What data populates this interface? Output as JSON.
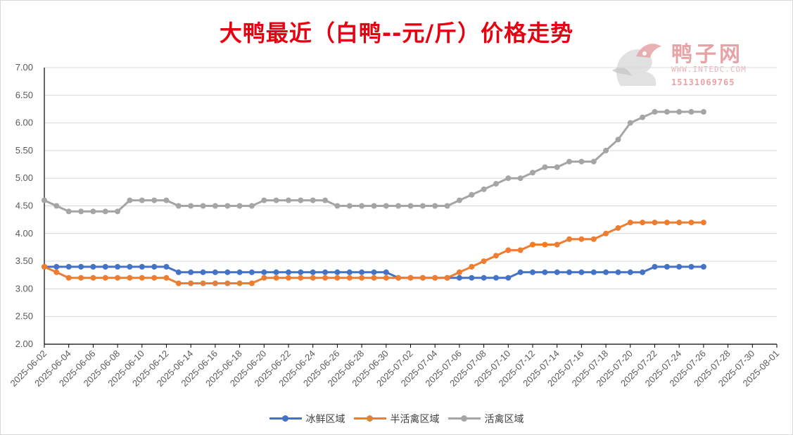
{
  "chart_data": {
    "type": "line",
    "title": "大鸭最近（白鸭--元/斤）价格走势",
    "xlabel": "",
    "ylabel": "",
    "ylim": [
      2.0,
      7.0
    ],
    "yticks": [
      "7.00",
      "6.50",
      "6.00",
      "5.50",
      "5.00",
      "4.50",
      "4.00",
      "3.50",
      "3.00",
      "2.50",
      "2.00"
    ],
    "x_axis_range": [
      "2025-06-02",
      "2025-08-01"
    ],
    "x_tick_labels": [
      "2025-06-02",
      "2025-06-04",
      "2025-06-06",
      "2025-06-08",
      "2025-06-10",
      "2025-06-12",
      "2025-06-14",
      "2025-06-16",
      "2025-06-18",
      "2025-06-20",
      "2025-06-22",
      "2025-06-24",
      "2025-06-26",
      "2025-06-28",
      "2025-06-30",
      "2025-07-02",
      "2025-07-04",
      "2025-07-06",
      "2025-07-08",
      "2025-07-10",
      "2025-07-12",
      "2025-07-14",
      "2025-07-16",
      "2025-07-18",
      "2025-07-20",
      "2025-07-22",
      "2025-07-24",
      "2025-07-26",
      "2025-07-28",
      "2025-07-30",
      "2025-08-01"
    ],
    "x": [
      "2025-06-02",
      "2025-06-03",
      "2025-06-04",
      "2025-06-05",
      "2025-06-06",
      "2025-06-07",
      "2025-06-08",
      "2025-06-09",
      "2025-06-10",
      "2025-06-11",
      "2025-06-12",
      "2025-06-13",
      "2025-06-14",
      "2025-06-15",
      "2025-06-16",
      "2025-06-17",
      "2025-06-18",
      "2025-06-19",
      "2025-06-20",
      "2025-06-21",
      "2025-06-22",
      "2025-06-23",
      "2025-06-24",
      "2025-06-25",
      "2025-06-26",
      "2025-06-27",
      "2025-06-28",
      "2025-06-29",
      "2025-06-30",
      "2025-07-01",
      "2025-07-02",
      "2025-07-03",
      "2025-07-04",
      "2025-07-05",
      "2025-07-06",
      "2025-07-07",
      "2025-07-08",
      "2025-07-09",
      "2025-07-10",
      "2025-07-11",
      "2025-07-12",
      "2025-07-13",
      "2025-07-14",
      "2025-07-15",
      "2025-07-16",
      "2025-07-17",
      "2025-07-18",
      "2025-07-19",
      "2025-07-20",
      "2025-07-21",
      "2025-07-22",
      "2025-07-23",
      "2025-07-24",
      "2025-07-25",
      "2025-07-26"
    ],
    "series": [
      {
        "name": "冰鲜区域",
        "color": "#4472c4",
        "values": [
          3.4,
          3.4,
          3.4,
          3.4,
          3.4,
          3.4,
          3.4,
          3.4,
          3.4,
          3.4,
          3.4,
          3.3,
          3.3,
          3.3,
          3.3,
          3.3,
          3.3,
          3.3,
          3.3,
          3.3,
          3.3,
          3.3,
          3.3,
          3.3,
          3.3,
          3.3,
          3.3,
          3.3,
          3.3,
          3.2,
          3.2,
          3.2,
          3.2,
          3.2,
          3.2,
          3.2,
          3.2,
          3.2,
          3.2,
          3.3,
          3.3,
          3.3,
          3.3,
          3.3,
          3.3,
          3.3,
          3.3,
          3.3,
          3.3,
          3.3,
          3.4,
          3.4,
          3.4,
          3.4,
          3.4
        ]
      },
      {
        "name": "半活禽区域",
        "color": "#ed7d31",
        "values": [
          3.4,
          3.3,
          3.2,
          3.2,
          3.2,
          3.2,
          3.2,
          3.2,
          3.2,
          3.2,
          3.2,
          3.1,
          3.1,
          3.1,
          3.1,
          3.1,
          3.1,
          3.1,
          3.2,
          3.2,
          3.2,
          3.2,
          3.2,
          3.2,
          3.2,
          3.2,
          3.2,
          3.2,
          3.2,
          3.2,
          3.2,
          3.2,
          3.2,
          3.2,
          3.3,
          3.4,
          3.5,
          3.6,
          3.7,
          3.7,
          3.8,
          3.8,
          3.8,
          3.9,
          3.9,
          3.9,
          4.0,
          4.1,
          4.2,
          4.2,
          4.2,
          4.2,
          4.2,
          4.2,
          4.2
        ]
      },
      {
        "name": "活禽区域",
        "color": "#a5a5a5",
        "values": [
          4.6,
          4.5,
          4.4,
          4.4,
          4.4,
          4.4,
          4.4,
          4.6,
          4.6,
          4.6,
          4.6,
          4.5,
          4.5,
          4.5,
          4.5,
          4.5,
          4.5,
          4.5,
          4.6,
          4.6,
          4.6,
          4.6,
          4.6,
          4.6,
          4.5,
          4.5,
          4.5,
          4.5,
          4.5,
          4.5,
          4.5,
          4.5,
          4.5,
          4.5,
          4.6,
          4.7,
          4.8,
          4.9,
          5.0,
          5.0,
          5.1,
          5.2,
          5.2,
          5.3,
          5.3,
          5.3,
          5.5,
          5.7,
          6.0,
          6.1,
          6.2,
          6.2,
          6.2,
          6.2,
          6.2
        ]
      }
    ],
    "grid": true,
    "legend_position": "bottom"
  },
  "watermark": {
    "name": "鸭子网",
    "url": "WWW.INTEDC.COM",
    "phone": "15131069765"
  }
}
